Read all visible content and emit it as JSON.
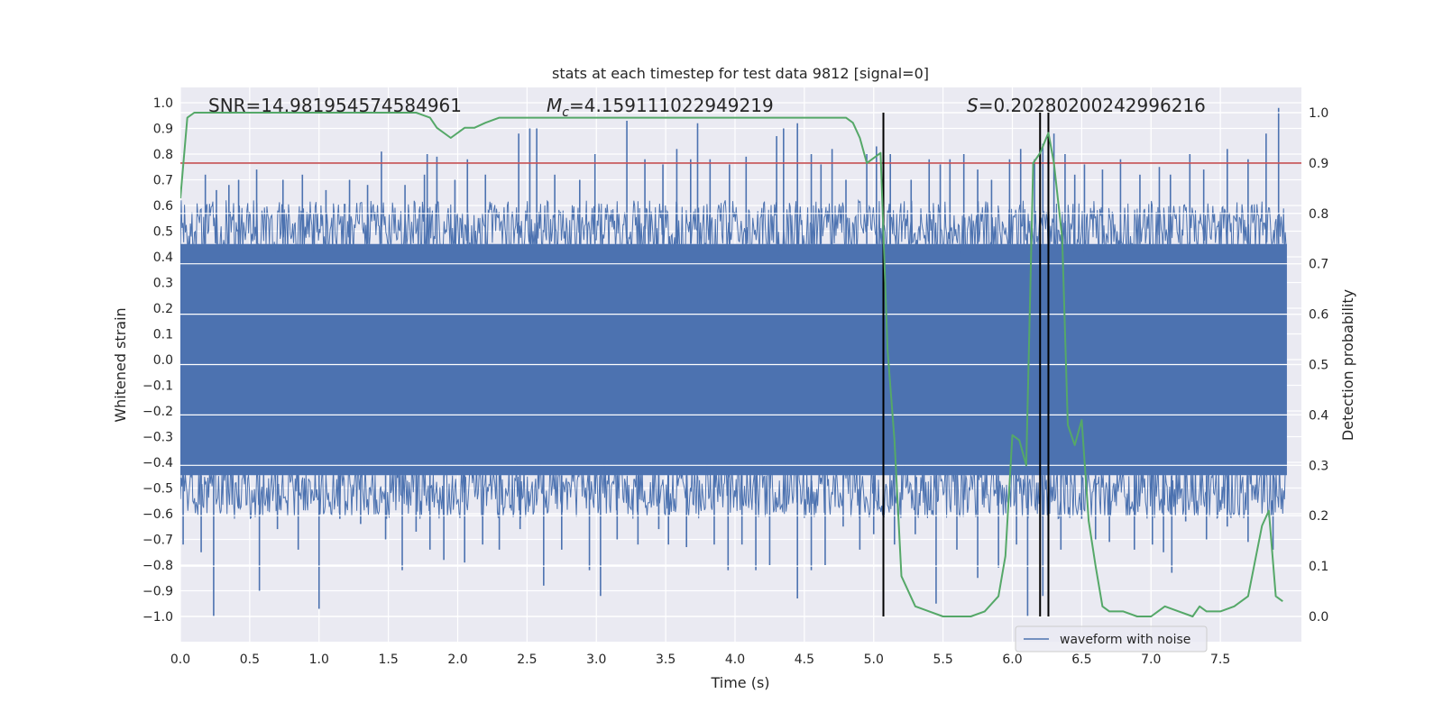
{
  "chart_data": {
    "type": "line",
    "title": "stats at each timestep for test data 9812 [signal=0]",
    "xlabel": "Time (s)",
    "ylabel_left": "Whitened strain",
    "ylabel_right": "Detection probability",
    "xlim": [
      0.0,
      8.0
    ],
    "ylim_left": [
      -1.1,
      1.07
    ],
    "ylim_right": [
      -0.05,
      1.0
    ],
    "x_ticks": [
      "0.0",
      "0.5",
      "1.0",
      "1.5",
      "2.0",
      "2.5",
      "3.0",
      "3.5",
      "4.0",
      "4.5",
      "5.0",
      "5.5",
      "6.0",
      "6.5",
      "7.0",
      "7.5"
    ],
    "y_ticks_left": [
      "1.0",
      "0.9",
      "0.8",
      "0.7",
      "0.6",
      "0.5",
      "0.4",
      "0.3",
      "0.2",
      "0.1",
      "0.0",
      "−0.1",
      "−0.2",
      "−0.3",
      "−0.4",
      "−0.5",
      "−0.6",
      "−0.7",
      "−0.8",
      "−0.9",
      "−1.0"
    ],
    "y_ticks_right": [
      "1.0",
      "0.9",
      "0.8",
      "0.7",
      "0.6",
      "0.5",
      "0.4",
      "0.3",
      "0.2",
      "0.1",
      "0.0"
    ],
    "annotations": {
      "snr": "SNR=14.981954574584961",
      "mc_symbol": "M",
      "mc_sub": "c",
      "mc_value": "=4.159111022949219",
      "s_symbol": "S",
      "s_value": "=0.20280200242996216"
    },
    "legend": {
      "label": "waveform with noise",
      "position": "lower-right"
    },
    "threshold": {
      "value": 0.9,
      "axis": "right"
    },
    "vlines": [
      5.07,
      6.2,
      6.26
    ],
    "series": [
      {
        "name": "waveform with noise",
        "axis": "left",
        "render": "dense-noise",
        "band": [
          -0.45,
          0.45
        ],
        "spikes_up": [
          [
            0.18,
            0.72
          ],
          [
            0.26,
            0.66
          ],
          [
            0.35,
            0.68
          ],
          [
            0.42,
            0.7
          ],
          [
            0.55,
            0.74
          ],
          [
            0.74,
            0.7
          ],
          [
            0.88,
            0.72
          ],
          [
            1.05,
            0.66
          ],
          [
            1.22,
            0.7
          ],
          [
            1.35,
            0.68
          ],
          [
            1.45,
            0.81
          ],
          [
            1.62,
            0.68
          ],
          [
            1.76,
            0.72
          ],
          [
            1.78,
            0.8
          ],
          [
            1.85,
            0.79
          ],
          [
            1.98,
            0.7
          ],
          [
            2.07,
            0.78
          ],
          [
            2.2,
            0.72
          ],
          [
            2.44,
            0.88
          ],
          [
            2.52,
            0.9
          ],
          [
            2.57,
            0.9
          ],
          [
            2.7,
            0.72
          ],
          [
            2.88,
            0.7
          ],
          [
            2.99,
            0.8
          ],
          [
            3.22,
            0.93
          ],
          [
            3.35,
            0.78
          ],
          [
            3.48,
            0.76
          ],
          [
            3.58,
            0.82
          ],
          [
            3.68,
            0.78
          ],
          [
            3.73,
            0.92
          ],
          [
            3.82,
            0.78
          ],
          [
            3.96,
            0.76
          ],
          [
            4.08,
            0.79
          ],
          [
            4.3,
            0.87
          ],
          [
            4.35,
            0.9
          ],
          [
            4.45,
            0.92
          ],
          [
            4.55,
            0.8
          ],
          [
            4.62,
            0.76
          ],
          [
            4.7,
            0.82
          ],
          [
            4.8,
            0.7
          ],
          [
            4.95,
            0.8
          ],
          [
            5.02,
            0.83
          ],
          [
            5.12,
            0.8
          ],
          [
            5.27,
            0.7
          ],
          [
            5.4,
            0.78
          ],
          [
            5.48,
            0.76
          ],
          [
            5.55,
            0.78
          ],
          [
            5.65,
            0.8
          ],
          [
            5.75,
            0.74
          ],
          [
            5.85,
            0.7
          ],
          [
            5.98,
            0.78
          ],
          [
            6.06,
            0.82
          ],
          [
            6.16,
            0.78
          ],
          [
            6.22,
            0.84
          ],
          [
            6.3,
            0.88
          ],
          [
            6.38,
            0.8
          ],
          [
            6.45,
            0.72
          ],
          [
            6.52,
            0.76
          ],
          [
            6.65,
            0.74
          ],
          [
            6.78,
            0.78
          ],
          [
            6.92,
            0.72
          ],
          [
            7.06,
            0.75
          ],
          [
            7.14,
            0.72
          ],
          [
            7.28,
            0.8
          ],
          [
            7.38,
            0.74
          ],
          [
            7.55,
            0.82
          ],
          [
            7.7,
            0.78
          ],
          [
            7.83,
            0.88
          ],
          [
            7.92,
            0.98
          ]
        ],
        "spikes_down": [
          [
            0.02,
            -0.72
          ],
          [
            0.15,
            -0.75
          ],
          [
            0.24,
            -1.0
          ],
          [
            0.42,
            -0.58
          ],
          [
            0.57,
            -0.9
          ],
          [
            0.7,
            -0.66
          ],
          [
            0.85,
            -0.74
          ],
          [
            1.0,
            -0.97
          ],
          [
            1.15,
            -0.62
          ],
          [
            1.3,
            -0.64
          ],
          [
            1.48,
            -0.7
          ],
          [
            1.6,
            -0.82
          ],
          [
            1.7,
            -0.67
          ],
          [
            1.8,
            -0.74
          ],
          [
            1.9,
            -0.78
          ],
          [
            2.05,
            -0.79
          ],
          [
            2.18,
            -0.72
          ],
          [
            2.3,
            -0.74
          ],
          [
            2.45,
            -0.66
          ],
          [
            2.62,
            -0.88
          ],
          [
            2.75,
            -0.74
          ],
          [
            2.95,
            -0.82
          ],
          [
            3.03,
            -0.92
          ],
          [
            3.15,
            -0.7
          ],
          [
            3.3,
            -0.72
          ],
          [
            3.45,
            -0.66
          ],
          [
            3.52,
            -0.72
          ],
          [
            3.65,
            -0.73
          ],
          [
            3.85,
            -0.72
          ],
          [
            3.95,
            -0.82
          ],
          [
            4.05,
            -0.72
          ],
          [
            4.15,
            -0.82
          ],
          [
            4.25,
            -0.8
          ],
          [
            4.45,
            -0.93
          ],
          [
            4.55,
            -0.82
          ],
          [
            4.65,
            -0.8
          ],
          [
            4.78,
            -0.65
          ],
          [
            4.9,
            -0.74
          ],
          [
            5.0,
            -0.68
          ],
          [
            5.15,
            -0.72
          ],
          [
            5.3,
            -0.68
          ],
          [
            5.45,
            -0.95
          ],
          [
            5.6,
            -0.74
          ],
          [
            5.75,
            -0.85
          ],
          [
            5.9,
            -0.81
          ],
          [
            6.03,
            -0.72
          ],
          [
            6.11,
            -1.0
          ],
          [
            6.22,
            -0.92
          ],
          [
            6.35,
            -0.74
          ],
          [
            6.5,
            -0.62
          ],
          [
            6.6,
            -0.7
          ],
          [
            6.7,
            -0.71
          ],
          [
            6.88,
            -0.74
          ],
          [
            7.01,
            -0.72
          ],
          [
            7.09,
            -0.75
          ],
          [
            7.15,
            -0.83
          ],
          [
            7.25,
            -0.63
          ],
          [
            7.4,
            -0.7
          ],
          [
            7.55,
            -0.65
          ],
          [
            7.7,
            -0.71
          ],
          [
            7.88,
            -0.74
          ]
        ]
      },
      {
        "name": "detection probability",
        "axis": "right",
        "x": [
          0.0,
          0.05,
          0.1,
          0.2,
          0.5,
          1.0,
          1.5,
          1.7,
          1.8,
          1.85,
          1.95,
          2.05,
          2.12,
          2.2,
          2.3,
          2.6,
          3.5,
          4.0,
          4.5,
          4.7,
          4.8,
          4.85,
          4.9,
          4.95,
          5.0,
          5.05,
          5.1,
          5.15,
          5.2,
          5.3,
          5.4,
          5.5,
          5.6,
          5.7,
          5.8,
          5.9,
          5.95,
          6.0,
          6.05,
          6.1,
          6.15,
          6.2,
          6.26,
          6.3,
          6.36,
          6.4,
          6.45,
          6.5,
          6.55,
          6.6,
          6.65,
          6.7,
          6.8,
          6.9,
          7.0,
          7.05,
          7.1,
          7.2,
          7.3,
          7.35,
          7.4,
          7.5,
          7.6,
          7.7,
          7.8,
          7.85,
          7.9,
          7.95
        ],
        "y": [
          0.83,
          0.99,
          1.0,
          1.0,
          1.0,
          1.0,
          1.0,
          1.0,
          0.99,
          0.97,
          0.95,
          0.97,
          0.97,
          0.98,
          0.99,
          0.99,
          0.99,
          0.99,
          0.99,
          0.99,
          0.99,
          0.98,
          0.95,
          0.9,
          0.91,
          0.92,
          0.53,
          0.35,
          0.08,
          0.02,
          0.01,
          0.0,
          0.0,
          0.0,
          0.01,
          0.04,
          0.12,
          0.36,
          0.35,
          0.3,
          0.9,
          0.92,
          0.96,
          0.9,
          0.75,
          0.38,
          0.34,
          0.39,
          0.19,
          0.1,
          0.02,
          0.01,
          0.01,
          0.0,
          0.0,
          0.01,
          0.02,
          0.01,
          0.0,
          0.02,
          0.01,
          0.01,
          0.02,
          0.04,
          0.18,
          0.21,
          0.04,
          0.03
        ]
      }
    ]
  },
  "colors": {
    "background": "#eaeaf2",
    "grid": "#ffffff",
    "waveform": "#4c72b0",
    "probability": "#55a868",
    "threshold": "#c44e52",
    "vline": "#000000",
    "legend_border": "#cccccc"
  }
}
